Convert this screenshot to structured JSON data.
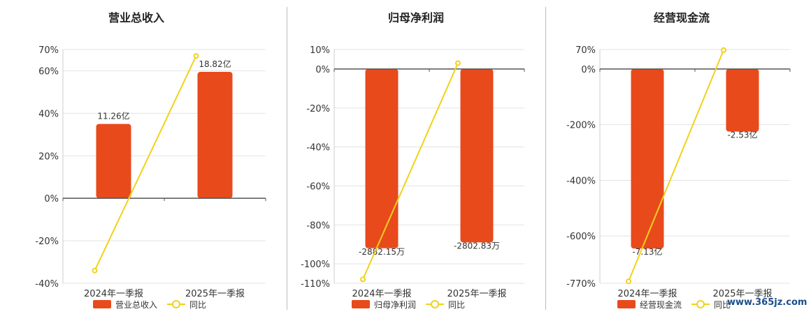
{
  "colors": {
    "bar": "#e84a1c",
    "line": "#f1d21a",
    "grid": "#e3e3e3",
    "axis": "#555555"
  },
  "watermark": "www.365jz.com",
  "chart_data": [
    {
      "type": "bar",
      "title": "营业总收入",
      "categories": [
        "2024年一季报",
        "2025年一季报"
      ],
      "y_ticks": [
        "70%",
        "60%",
        "40%",
        "20%",
        "0%",
        "-20%",
        "-40%"
      ],
      "ylim": [
        -40,
        70
      ],
      "series": [
        {
          "name": "营业总收入",
          "kind": "bar",
          "values": [
            35,
            59.5
          ],
          "labels": [
            "11.26亿",
            "18.82亿"
          ]
        },
        {
          "name": "同比",
          "kind": "line",
          "values": [
            -34,
            67
          ]
        }
      ],
      "legend": "bottom-center"
    },
    {
      "type": "bar",
      "title": "归母净利润",
      "categories": [
        "2024年一季报",
        "2025年一季报"
      ],
      "y_ticks": [
        "10%",
        "0%",
        "-20%",
        "-40%",
        "-60%",
        "-80%",
        "-100%",
        "-110%"
      ],
      "ylim": [
        -110,
        10
      ],
      "series": [
        {
          "name": "归母净利润",
          "kind": "bar",
          "values": [
            -92,
            -89
          ],
          "labels": [
            "-2882.15万",
            "-2802.83万"
          ]
        },
        {
          "name": "同比",
          "kind": "line",
          "values": [
            -108,
            3
          ]
        }
      ],
      "legend": "bottom-center"
    },
    {
      "type": "bar",
      "title": "经营现金流",
      "categories": [
        "2024年一季报",
        "2025年一季报"
      ],
      "y_ticks": [
        "70%",
        "0%",
        "-200%",
        "-400%",
        "-600%",
        "-770%"
      ],
      "ylim": [
        -770,
        70
      ],
      "series": [
        {
          "name": "经营现金流",
          "kind": "bar",
          "values": [
            -645,
            -225
          ],
          "labels": [
            "-7.13亿",
            "-2.53亿"
          ]
        },
        {
          "name": "同比",
          "kind": "line",
          "values": [
            -763,
            68
          ]
        }
      ],
      "legend": "bottom-center"
    }
  ]
}
